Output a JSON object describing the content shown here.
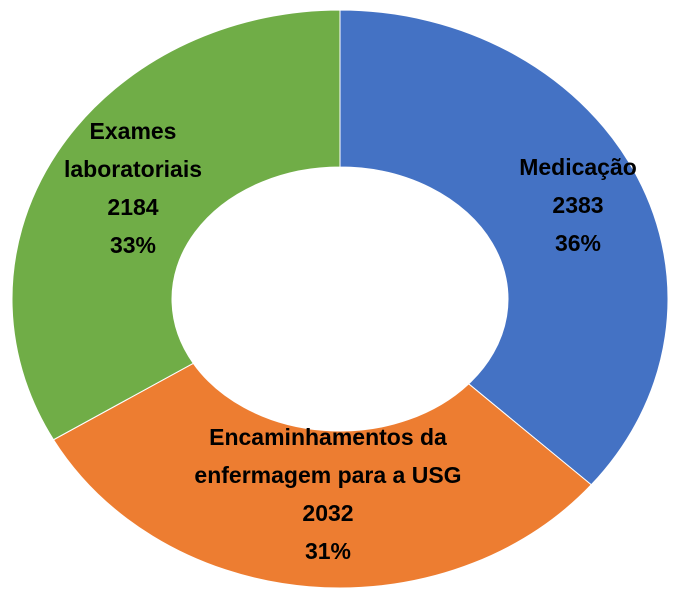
{
  "chart_data": {
    "type": "donut",
    "categories": [
      "Medicação",
      "Encaminhamentos da enfermagem para a USG",
      "Exames laboratoriais"
    ],
    "values": [
      2383,
      2032,
      2184
    ],
    "percent_labels": [
      "36%",
      "31%",
      "33%"
    ],
    "colors": [
      "#4472c4",
      "#ed7d31",
      "#70ad47"
    ]
  }
}
